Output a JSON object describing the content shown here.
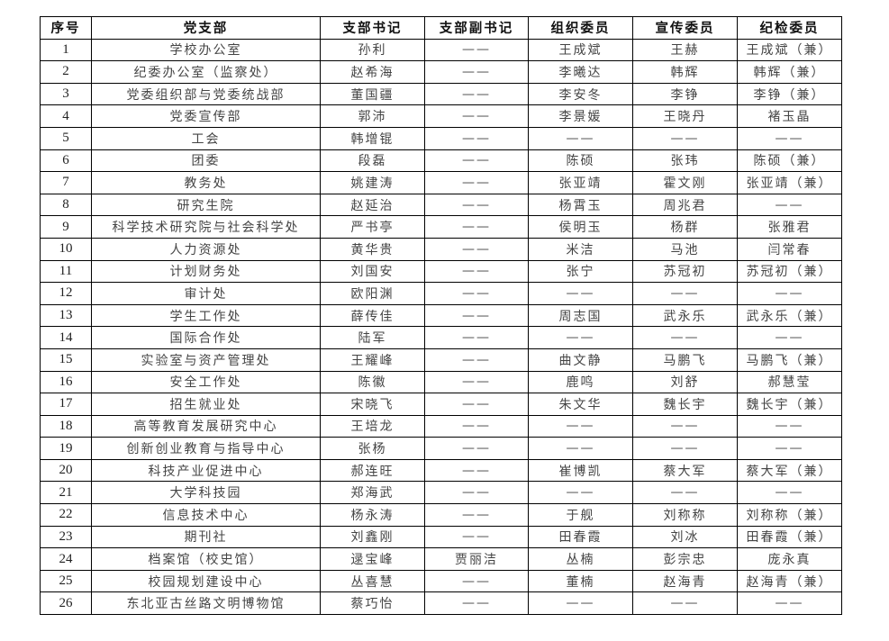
{
  "headers": [
    "序号",
    "党支部",
    "支部书记",
    "支部副书记",
    "组织委员",
    "宣传委员",
    "纪检委员"
  ],
  "rows": [
    [
      "1",
      "学校办公室",
      "孙利",
      "——",
      "王成斌",
      "王赫",
      "王成斌（兼）"
    ],
    [
      "2",
      "纪委办公室（监察处）",
      "赵希海",
      "——",
      "李曦达",
      "韩辉",
      "韩辉（兼）"
    ],
    [
      "3",
      "党委组织部与党委统战部",
      "董国疆",
      "——",
      "李安冬",
      "李铮",
      "李铮（兼）"
    ],
    [
      "4",
      "党委宣传部",
      "郭沛",
      "——",
      "李景媛",
      "王晓丹",
      "褚玉晶"
    ],
    [
      "5",
      "工会",
      "韩增锟",
      "——",
      "——",
      "——",
      "——"
    ],
    [
      "6",
      "团委",
      "段磊",
      "——",
      "陈硕",
      "张玮",
      "陈硕（兼）"
    ],
    [
      "7",
      "教务处",
      "姚建涛",
      "——",
      "张亚靖",
      "霍文刚",
      "张亚靖（兼）"
    ],
    [
      "8",
      "研究生院",
      "赵延治",
      "——",
      "杨霄玉",
      "周兆君",
      "——"
    ],
    [
      "9",
      "科学技术研究院与社会科学处",
      "严书亭",
      "——",
      "侯明玉",
      "杨群",
      "张雅君"
    ],
    [
      "10",
      "人力资源处",
      "黄华贵",
      "——",
      "米洁",
      "马池",
      "闫常春"
    ],
    [
      "11",
      "计划财务处",
      "刘国安",
      "——",
      "张宁",
      "苏冠初",
      "苏冠初（兼）"
    ],
    [
      "12",
      "审计处",
      "欧阳渊",
      "——",
      "——",
      "——",
      "——"
    ],
    [
      "13",
      "学生工作处",
      "薛传佳",
      "——",
      "周志国",
      "武永乐",
      "武永乐（兼）"
    ],
    [
      "14",
      "国际合作处",
      "陆军",
      "——",
      "——",
      "——",
      "——"
    ],
    [
      "15",
      "实验室与资产管理处",
      "王耀峰",
      "——",
      "曲文静",
      "马鹏飞",
      "马鹏飞（兼）"
    ],
    [
      "16",
      "安全工作处",
      "陈徽",
      "——",
      "鹿鸣",
      "刘舒",
      "郝慧莹"
    ],
    [
      "17",
      "招生就业处",
      "宋晓飞",
      "——",
      "朱文华",
      "魏长宇",
      "魏长宇（兼）"
    ],
    [
      "18",
      "高等教育发展研究中心",
      "王培龙",
      "——",
      "——",
      "——",
      "——"
    ],
    [
      "19",
      "创新创业教育与指导中心",
      "张杨",
      "——",
      "——",
      "——",
      "——"
    ],
    [
      "20",
      "科技产业促进中心",
      "郝连旺",
      "——",
      "崔博凯",
      "蔡大军",
      "蔡大军（兼）"
    ],
    [
      "21",
      "大学科技园",
      "郑海武",
      "——",
      "——",
      "——",
      "——"
    ],
    [
      "22",
      "信息技术中心",
      "杨永涛",
      "——",
      "于舰",
      "刘称称",
      "刘称称（兼）"
    ],
    [
      "23",
      "期刊社",
      "刘鑫刚",
      "——",
      "田春霞",
      "刘冰",
      "田春霞（兼）"
    ],
    [
      "24",
      "档案馆（校史馆）",
      "逯宝峰",
      "贾丽洁",
      "丛楠",
      "彭宗忠",
      "庞永真"
    ],
    [
      "25",
      "校园规划建设中心",
      "丛喜慧",
      "——",
      "董楠",
      "赵海青",
      "赵海青（兼）"
    ],
    [
      "26",
      "东北亚古丝路文明博物馆",
      "蔡巧怡",
      "——",
      "——",
      "——",
      "——"
    ]
  ]
}
